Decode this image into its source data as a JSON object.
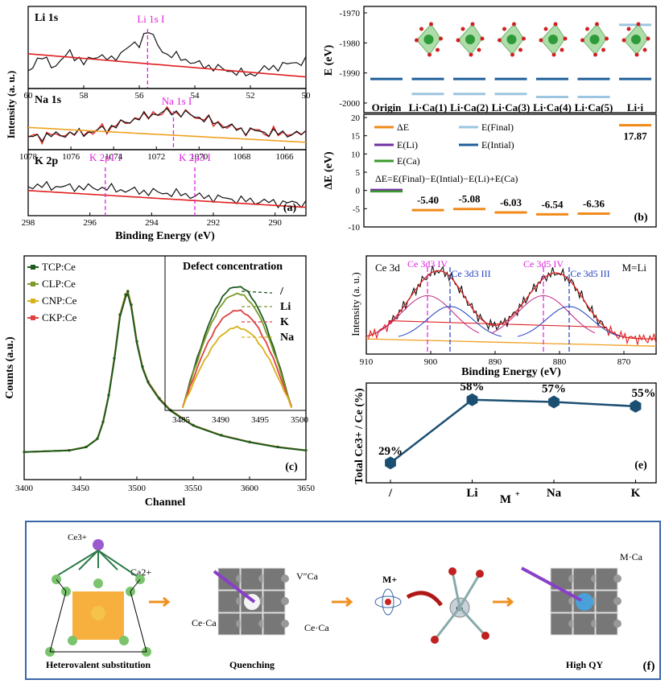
{
  "chart_data": [
    {
      "panel": "a",
      "type": "line",
      "ylabel": "Intensity (a. u.)",
      "xlabel": "Binding Energy (eV)",
      "panel_label": "(a)",
      "subplots": [
        {
          "name": "Li 1s",
          "peak_label": "Li 1s I",
          "peak_x": 55.7,
          "xlim": [
            60,
            50
          ],
          "ticks": [
            "60",
            "58",
            "56",
            "54",
            "52",
            "50"
          ],
          "tick_values": [
            60,
            58,
            56,
            54,
            52,
            50
          ],
          "x": [
            60,
            59.5,
            59,
            58.5,
            58,
            57.5,
            57,
            56.5,
            56,
            55.7,
            55.4,
            55,
            54.5,
            54,
            53.5,
            53,
            52.5,
            52,
            51.5,
            51,
            50.5,
            50
          ],
          "y": [
            0.25,
            0.45,
            0.3,
            0.55,
            0.35,
            0.5,
            0.4,
            0.6,
            0.7,
            0.95,
            0.7,
            0.5,
            0.45,
            0.35,
            0.3,
            0.25,
            0.2,
            0.15,
            0.25,
            0.3,
            0.35,
            0.4
          ]
        },
        {
          "name": "Na 1s",
          "peak_label": "Na 1s I",
          "peak_x": 1071.2,
          "xlim": [
            1078,
            1065
          ],
          "ticks": [
            "1078",
            "1076",
            "1074",
            "1072",
            "1070",
            "1068",
            "1066"
          ],
          "tick_values": [
            1078,
            1076,
            1074,
            1072,
            1070,
            1068,
            1066
          ],
          "x": [
            1078,
            1077,
            1076,
            1075,
            1074,
            1073,
            1072,
            1071.2,
            1070,
            1069,
            1068,
            1067,
            1066,
            1065
          ],
          "y": [
            0.2,
            0.25,
            0.3,
            0.35,
            0.5,
            0.7,
            0.85,
            0.9,
            0.75,
            0.55,
            0.4,
            0.35,
            0.3,
            0.3
          ]
        },
        {
          "name": "K 2p",
          "peak_labels": [
            "K 2p1 I",
            "K 2p3 I"
          ],
          "peak_xs": [
            295.5,
            292.6
          ],
          "xlim": [
            298,
            289
          ],
          "ticks": [
            "298",
            "296",
            "294",
            "292",
            "290"
          ],
          "tick_values": [
            298,
            296,
            294,
            292,
            290
          ],
          "x": [
            298,
            297,
            296,
            295.5,
            295,
            294,
            293,
            292.6,
            292,
            291,
            290,
            289
          ],
          "y": [
            0.6,
            0.58,
            0.55,
            0.55,
            0.5,
            0.45,
            0.4,
            0.35,
            0.32,
            0.25,
            0.2,
            0.18
          ]
        }
      ]
    },
    {
      "panel": "b",
      "type": "bar",
      "categories": [
        "Origin",
        "Li·Ca(1)",
        "Li·Ca(2)",
        "Li·Ca(3)",
        "Li·Ca(4)",
        "Li·Ca(5)",
        "Li·i"
      ],
      "top": {
        "ylabel": "E (eV)",
        "ylim": [
          -2000,
          -1970
        ],
        "ticks": [
          "-1970",
          "-1980",
          "-1990",
          "-2000"
        ],
        "tick_values": [
          -1970,
          -1980,
          -1990,
          -2000
        ],
        "E_intial": [
          -1992,
          -1992,
          -1992,
          -1992,
          -1992,
          -1992,
          -1992
        ],
        "E_final": [
          null,
          -1997,
          -1997,
          -1997,
          -1998,
          -1998,
          -1974
        ]
      },
      "bottom": {
        "ylabel": "ΔE (eV)",
        "ylim": [
          -10,
          20
        ],
        "ticks": [
          "20",
          "15",
          "10",
          "5",
          "0",
          "-5",
          "-10"
        ],
        "tick_values": [
          20,
          15,
          10,
          5,
          0,
          -5,
          -10
        ],
        "delta_E": [
          null,
          -5.4,
          -5.08,
          -6.03,
          -6.54,
          -6.36,
          17.87
        ],
        "value_labels": [
          "",
          "-5.40",
          "-5.08",
          "-6.03",
          "-6.54",
          "-6.36",
          "17.87"
        ],
        "E_Ca_origin": 0
      },
      "legend": [
        "ΔE",
        "E(Li)",
        "E(Ca)",
        "E(Final)",
        "E(Intial)"
      ],
      "equation": "ΔE=E(Final)−E(Intial)−E(Li)+E(Ca)",
      "panel_label": "(b)",
      "colors": {
        "delta": "#f08a1a",
        "li": "#7030a0",
        "ca": "#3a9a2a",
        "final": "#9cc6e0",
        "intial": "#1f5f9a"
      }
    },
    {
      "panel": "c",
      "type": "line",
      "xlabel": "Channel",
      "ylabel": "Counts (a.u.)",
      "xlim": [
        3400,
        3650
      ],
      "ticks": [
        "3400",
        "3450",
        "3500",
        "3550",
        "3600",
        "3650"
      ],
      "tick_values": [
        3400,
        3450,
        3500,
        3550,
        3600,
        3650
      ],
      "series": [
        {
          "name": "TCP:Ce",
          "color": "#1f5a1f"
        },
        {
          "name": "CLP:Ce",
          "color": "#7c9a2a"
        },
        {
          "name": "CNP:Ce",
          "color": "#d8b21a"
        },
        {
          "name": "CKP:Ce",
          "color": "#e04040"
        }
      ],
      "x": [
        3400,
        3440,
        3455,
        3465,
        3470,
        3475,
        3480,
        3485,
        3490,
        3492,
        3495,
        3500,
        3505,
        3510,
        3520,
        3530,
        3550,
        3575,
        3600,
        3625,
        3650
      ],
      "y": [
        0.04,
        0.05,
        0.07,
        0.12,
        0.22,
        0.38,
        0.6,
        0.86,
        0.98,
        1.0,
        0.92,
        0.7,
        0.55,
        0.46,
        0.36,
        0.29,
        0.2,
        0.14,
        0.1,
        0.07,
        0.05
      ],
      "inset": {
        "title": "Defect concentration",
        "xlim": [
          3485,
          3500
        ],
        "ticks": [
          "3485",
          "3490",
          "3495",
          "3500"
        ],
        "tick_values": [
          3485,
          3490,
          3495,
          3500
        ],
        "labels": [
          "/",
          "Li",
          "K",
          "Na"
        ]
      },
      "panel_label": "(c)"
    },
    {
      "panel": "d",
      "type": "line",
      "title": "Ce 3d",
      "condition": "M=Li",
      "xlabel": "Binding Energy (eV)",
      "ylabel": "Intensity (a. u.)",
      "xlim": [
        910,
        865
      ],
      "ticks": [
        "910",
        "900",
        "890",
        "880",
        "870"
      ],
      "tick_values": [
        910,
        900,
        890,
        880,
        870
      ],
      "peaks": [
        {
          "label": "Ce 3d3 IV",
          "x": 900.5
        },
        {
          "label": "Ce 3d3 III",
          "x": 897
        },
        {
          "label": "Ce 3d5 IV",
          "x": 882.5
        },
        {
          "label": "Ce 3d5 III",
          "x": 878.5
        }
      ]
    },
    {
      "panel": "e",
      "type": "line",
      "ylabel": "Total Ce3+ / Ce (%)",
      "xlabel": "M+",
      "categories": [
        "/",
        "Li",
        "Na",
        "K"
      ],
      "values": [
        29,
        58,
        57,
        55
      ],
      "value_labels": [
        "29%",
        "58%",
        "57%",
        "55%"
      ],
      "ylim": [
        25,
        62
      ],
      "panel_label": "(e)"
    }
  ],
  "schematic": {
    "ce_label": "Ce3+",
    "ca_label": "Ca2+",
    "m_label": "M+",
    "atom_center_label": "Ca",
    "labels": {
      "vacancy": "V″Ca",
      "ce_sub_left": "Ce·Ca",
      "ce_sub_right": "Ce·Ca",
      "m_sub": "M·Ca"
    },
    "captions": [
      "Heterovalent substitution",
      "Quenching",
      "High QY"
    ],
    "panel_label": "(f)"
  }
}
